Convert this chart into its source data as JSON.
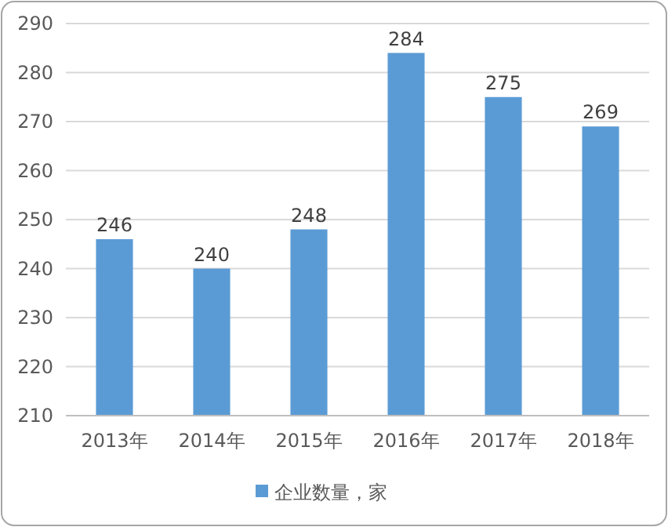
{
  "chart_data": {
    "type": "bar",
    "categories": [
      "2013年",
      "2014年",
      "2015年",
      "2016年",
      "2017年",
      "2018年"
    ],
    "series": [
      {
        "name": "企业数量，家",
        "color": "#5b9bd5",
        "values": [
          246,
          240,
          248,
          284,
          275,
          269
        ]
      }
    ],
    "ylim": [
      210,
      290
    ],
    "yticks": [
      210,
      220,
      230,
      240,
      250,
      260,
      270,
      280,
      290
    ],
    "grid": "y",
    "data_labels": true,
    "legend": "bottom"
  }
}
